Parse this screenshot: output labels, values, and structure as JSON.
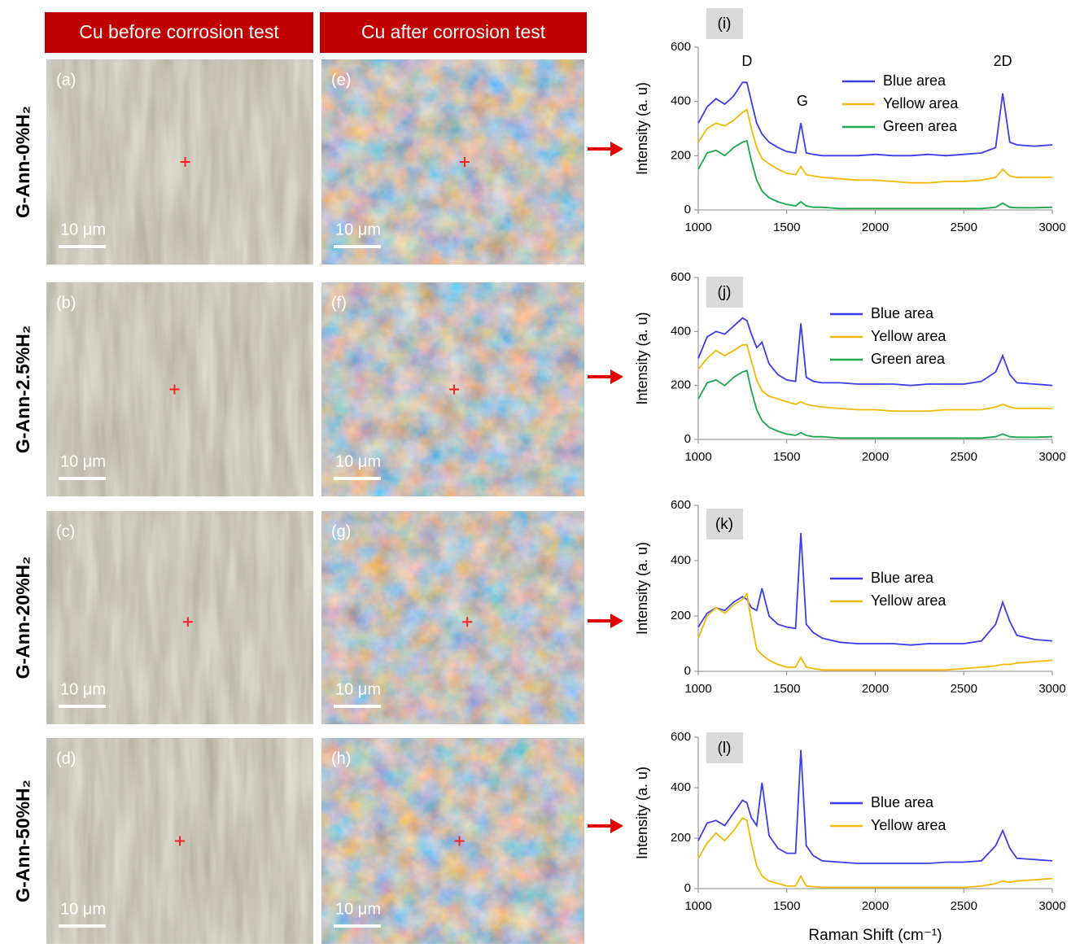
{
  "headers": [
    "Cu before corrosion test",
    "Cu after corrosion test"
  ],
  "rows": [
    {
      "label": "G-Ann-0%H₂",
      "before": {
        "panel": "(a)",
        "scale": "10 μm"
      },
      "after": {
        "panel": "(e)",
        "scale": "10 μm"
      }
    },
    {
      "label": "G-Ann-2.5%H₂",
      "before": {
        "panel": "(b)",
        "scale": "10 μm"
      },
      "after": {
        "panel": "(f)",
        "scale": "10 μm"
      }
    },
    {
      "label": "G-Ann-20%H₂",
      "before": {
        "panel": "(c)",
        "scale": "10 μm"
      },
      "after": {
        "panel": "(g)",
        "scale": "10 μm"
      }
    },
    {
      "label": "G-Ann-50%H₂",
      "before": {
        "panel": "(d)",
        "scale": "10 μm"
      },
      "after": {
        "panel": "(h)",
        "scale": "10 μm"
      }
    }
  ],
  "chart_data": [
    {
      "type": "line",
      "panel": "(i)",
      "ylabel": "Intensity (a. u)",
      "annotations": [
        "D",
        "G",
        "2D"
      ],
      "xlim": [
        1000,
        3000
      ],
      "xticks": [
        1000,
        1500,
        2000,
        2500,
        3000
      ],
      "ylim": [
        0,
        600
      ],
      "yticks": [
        0,
        200,
        400,
        600
      ],
      "x": [
        1000,
        1050,
        1100,
        1150,
        1200,
        1250,
        1275,
        1300,
        1330,
        1360,
        1400,
        1450,
        1500,
        1550,
        1580,
        1610,
        1650,
        1700,
        1800,
        1900,
        2000,
        2100,
        2200,
        2300,
        2400,
        2500,
        2600,
        2680,
        2720,
        2760,
        2800,
        2900,
        3000
      ],
      "series": [
        {
          "name": "Blue area",
          "color": "#3b3bf0",
          "values": [
            320,
            380,
            410,
            390,
            420,
            470,
            470,
            400,
            320,
            280,
            250,
            230,
            215,
            210,
            320,
            210,
            205,
            200,
            200,
            200,
            205,
            200,
            200,
            205,
            200,
            205,
            210,
            230,
            430,
            250,
            240,
            235,
            240
          ]
        },
        {
          "name": "Yellow area",
          "color": "#f5b800",
          "values": [
            250,
            300,
            320,
            310,
            330,
            360,
            370,
            300,
            230,
            190,
            170,
            150,
            135,
            130,
            160,
            130,
            125,
            120,
            115,
            110,
            110,
            105,
            100,
            100,
            105,
            105,
            110,
            120,
            150,
            125,
            120,
            120,
            120
          ]
        },
        {
          "name": "Green area",
          "color": "#1aa84a",
          "values": [
            150,
            210,
            220,
            200,
            230,
            250,
            255,
            180,
            110,
            70,
            45,
            30,
            20,
            15,
            30,
            15,
            10,
            10,
            5,
            5,
            5,
            5,
            5,
            5,
            5,
            5,
            5,
            10,
            25,
            10,
            8,
            8,
            10
          ]
        }
      ]
    },
    {
      "type": "line",
      "panel": "(j)",
      "ylabel": "Intensity (a. u)",
      "xlim": [
        1000,
        3000
      ],
      "xticks": [
        1000,
        1500,
        2000,
        2500,
        3000
      ],
      "ylim": [
        0,
        600
      ],
      "yticks": [
        0,
        200,
        400,
        600
      ],
      "x": [
        1000,
        1050,
        1100,
        1150,
        1200,
        1250,
        1275,
        1300,
        1330,
        1360,
        1400,
        1450,
        1500,
        1550,
        1580,
        1610,
        1650,
        1700,
        1800,
        1900,
        2000,
        2100,
        2200,
        2300,
        2400,
        2500,
        2600,
        2680,
        2720,
        2760,
        2800,
        2900,
        3000
      ],
      "series": [
        {
          "name": "Blue area",
          "color": "#3b3bf0",
          "values": [
            300,
            380,
            400,
            390,
            420,
            450,
            440,
            390,
            340,
            360,
            280,
            240,
            220,
            215,
            430,
            230,
            215,
            210,
            210,
            205,
            205,
            205,
            200,
            205,
            205,
            205,
            215,
            250,
            310,
            240,
            210,
            205,
            200
          ]
        },
        {
          "name": "Yellow area",
          "color": "#f5b800",
          "values": [
            260,
            300,
            330,
            310,
            330,
            350,
            350,
            290,
            220,
            180,
            160,
            150,
            140,
            130,
            140,
            130,
            125,
            120,
            115,
            110,
            110,
            105,
            105,
            105,
            110,
            110,
            110,
            120,
            130,
            120,
            115,
            115,
            115
          ]
        },
        {
          "name": "Green area",
          "color": "#1aa84a",
          "values": [
            150,
            210,
            220,
            200,
            230,
            250,
            255,
            180,
            110,
            70,
            45,
            30,
            20,
            15,
            25,
            15,
            10,
            10,
            5,
            5,
            5,
            5,
            5,
            5,
            5,
            5,
            5,
            10,
            20,
            10,
            8,
            8,
            10
          ]
        }
      ]
    },
    {
      "type": "line",
      "panel": "(k)",
      "ylabel": "Intensity (a. u)",
      "xlim": [
        1000,
        3000
      ],
      "xticks": [
        1000,
        1500,
        2000,
        2500,
        3000
      ],
      "ylim": [
        0,
        600
      ],
      "yticks": [
        0,
        200,
        400,
        600
      ],
      "x": [
        1000,
        1050,
        1100,
        1150,
        1200,
        1250,
        1275,
        1300,
        1330,
        1360,
        1400,
        1450,
        1500,
        1550,
        1580,
        1610,
        1650,
        1700,
        1800,
        1900,
        2000,
        2100,
        2200,
        2300,
        2400,
        2500,
        2600,
        2680,
        2720,
        2760,
        2800,
        2900,
        3000
      ],
      "series": [
        {
          "name": "Blue area",
          "color": "#3b3bf0",
          "values": [
            160,
            210,
            230,
            220,
            250,
            270,
            260,
            230,
            220,
            300,
            200,
            170,
            160,
            155,
            500,
            170,
            140,
            120,
            105,
            100,
            100,
            100,
            95,
            100,
            100,
            100,
            110,
            170,
            250,
            180,
            130,
            115,
            110
          ]
        },
        {
          "name": "Yellow area",
          "color": "#f5b800",
          "values": [
            120,
            200,
            230,
            210,
            240,
            260,
            280,
            180,
            80,
            60,
            40,
            25,
            15,
            15,
            50,
            15,
            10,
            5,
            5,
            5,
            5,
            5,
            5,
            5,
            5,
            10,
            15,
            20,
            25,
            25,
            30,
            35,
            40
          ]
        }
      ]
    },
    {
      "type": "line",
      "panel": "(l)",
      "ylabel": "Intensity (a. u)",
      "xlabel": "Raman Shift (cm⁻¹)",
      "xlim": [
        1000,
        3000
      ],
      "xticks": [
        1000,
        1500,
        2000,
        2500,
        3000
      ],
      "ylim": [
        0,
        600
      ],
      "yticks": [
        0,
        200,
        400,
        600
      ],
      "x": [
        1000,
        1050,
        1100,
        1150,
        1200,
        1250,
        1275,
        1300,
        1330,
        1360,
        1400,
        1450,
        1500,
        1550,
        1580,
        1610,
        1650,
        1700,
        1800,
        1900,
        2000,
        2100,
        2200,
        2300,
        2400,
        2500,
        2600,
        2680,
        2720,
        2760,
        2800,
        2900,
        3000
      ],
      "series": [
        {
          "name": "Blue area",
          "color": "#3b3bf0",
          "values": [
            190,
            260,
            270,
            250,
            300,
            350,
            340,
            280,
            250,
            420,
            210,
            160,
            140,
            140,
            550,
            170,
            130,
            110,
            105,
            100,
            100,
            100,
            100,
            100,
            105,
            105,
            110,
            170,
            230,
            160,
            120,
            115,
            110
          ]
        },
        {
          "name": "Yellow area",
          "color": "#f5b800",
          "values": [
            120,
            180,
            220,
            190,
            230,
            280,
            270,
            180,
            90,
            50,
            30,
            20,
            10,
            10,
            50,
            10,
            8,
            5,
            5,
            5,
            5,
            5,
            5,
            5,
            5,
            5,
            10,
            20,
            30,
            25,
            30,
            35,
            40
          ]
        }
      ]
    }
  ]
}
